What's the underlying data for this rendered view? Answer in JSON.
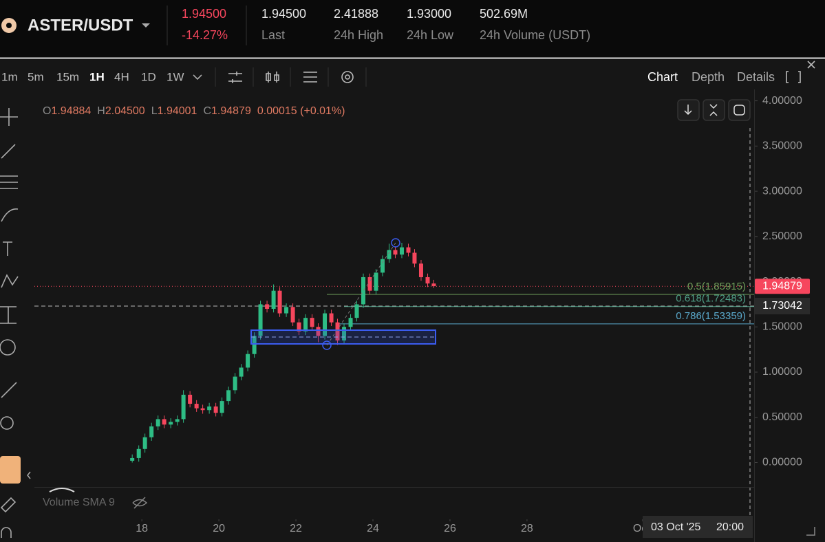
{
  "header": {
    "pair": "ASTER/USDT",
    "price": "1.94500",
    "change": "-14.27%",
    "stats": [
      {
        "value": "1.94500",
        "label": "Last"
      },
      {
        "value": "2.41888",
        "label": "24h High"
      },
      {
        "value": "1.93000",
        "label": "24h Low"
      },
      {
        "value": "502.69M",
        "label": "24h Volume (USDT)"
      }
    ]
  },
  "toolbar": {
    "intervals": [
      "1m",
      "5m",
      "15m",
      "1H",
      "4H",
      "1D",
      "1W"
    ],
    "active_interval": "1H",
    "tabs": [
      "Chart",
      "Depth",
      "Details"
    ],
    "active_tab": "Chart"
  },
  "legend": {
    "ohlc": [
      {
        "key": "O",
        "value": "1.94884"
      },
      {
        "key": "H",
        "value": "2.04500"
      },
      {
        "key": "L",
        "value": "1.94001"
      },
      {
        "key": "C",
        "value": "1.94879"
      }
    ],
    "change": "0.00015 (+0.01%)",
    "volume": "Volume SMA 9"
  },
  "crosshair": {
    "date": "03 Oct '25",
    "time": "20:00"
  },
  "chart_data": {
    "type": "candlestick",
    "up_color": "#2ebd85",
    "down_color": "#f6465d",
    "x": [
      17.75,
      17.92,
      18.08,
      18.25,
      18.42,
      18.58,
      18.75,
      18.92,
      19.08,
      19.25,
      19.42,
      19.58,
      19.75,
      19.92,
      20.08,
      20.25,
      20.42,
      20.58,
      20.75,
      20.92,
      21.08,
      21.25,
      21.42,
      21.58,
      21.75,
      21.92,
      22.08,
      22.25,
      22.42,
      22.58,
      22.75,
      22.92,
      23.08,
      23.25,
      23.42,
      23.58,
      23.75,
      23.92,
      24.08,
      24.25,
      24.42,
      24.58,
      24.75,
      24.92,
      25.08,
      25.25,
      25.42,
      25.58
    ],
    "candles": [
      [
        0.02,
        0.09,
        0.0,
        0.05
      ],
      [
        0.05,
        0.19,
        0.01,
        0.15
      ],
      [
        0.15,
        0.32,
        0.11,
        0.28
      ],
      [
        0.28,
        0.44,
        0.24,
        0.4
      ],
      [
        0.4,
        0.52,
        0.36,
        0.48
      ],
      [
        0.48,
        0.52,
        0.38,
        0.42
      ],
      [
        0.42,
        0.49,
        0.38,
        0.45
      ],
      [
        0.45,
        0.52,
        0.41,
        0.48
      ],
      [
        0.48,
        0.8,
        0.44,
        0.75
      ],
      [
        0.75,
        0.79,
        0.61,
        0.65
      ],
      [
        0.65,
        0.69,
        0.56,
        0.6
      ],
      [
        0.6,
        0.64,
        0.54,
        0.58
      ],
      [
        0.58,
        0.66,
        0.54,
        0.62
      ],
      [
        0.62,
        0.66,
        0.51,
        0.55
      ],
      [
        0.55,
        0.72,
        0.51,
        0.68
      ],
      [
        0.68,
        0.84,
        0.64,
        0.8
      ],
      [
        0.8,
        0.99,
        0.76,
        0.95
      ],
      [
        0.95,
        1.09,
        0.91,
        1.05
      ],
      [
        1.05,
        1.24,
        1.01,
        1.2
      ],
      [
        1.2,
        1.44,
        1.16,
        1.4
      ],
      [
        1.4,
        1.79,
        1.36,
        1.75
      ],
      [
        1.75,
        1.79,
        1.66,
        1.7
      ],
      [
        1.7,
        1.97,
        1.66,
        1.9
      ],
      [
        1.9,
        1.94,
        1.61,
        1.65
      ],
      [
        1.65,
        1.76,
        1.61,
        1.72
      ],
      [
        1.72,
        1.76,
        1.51,
        1.55
      ],
      [
        1.55,
        1.59,
        1.41,
        1.45
      ],
      [
        1.45,
        1.64,
        1.41,
        1.6
      ],
      [
        1.6,
        1.64,
        1.46,
        1.5
      ],
      [
        1.5,
        1.54,
        1.33,
        1.4
      ],
      [
        1.4,
        1.69,
        1.36,
        1.65
      ],
      [
        1.65,
        1.69,
        1.51,
        1.55
      ],
      [
        1.55,
        1.59,
        1.3,
        1.35
      ],
      [
        1.35,
        1.54,
        1.31,
        1.5
      ],
      [
        1.5,
        1.64,
        1.46,
        1.6
      ],
      [
        1.6,
        1.79,
        1.56,
        1.75
      ],
      [
        1.75,
        2.09,
        1.71,
        2.05
      ],
      [
        2.05,
        2.09,
        1.86,
        1.9
      ],
      [
        1.9,
        2.14,
        1.86,
        2.1
      ],
      [
        2.1,
        2.29,
        2.06,
        2.25
      ],
      [
        2.25,
        2.42,
        2.21,
        2.35
      ],
      [
        2.35,
        2.39,
        2.26,
        2.3
      ],
      [
        2.3,
        2.43,
        2.26,
        2.38
      ],
      [
        2.38,
        2.42,
        2.28,
        2.32
      ],
      [
        2.32,
        2.36,
        2.16,
        2.2
      ],
      [
        2.2,
        2.24,
        2.01,
        2.05
      ],
      [
        2.05,
        2.09,
        1.94,
        1.98
      ],
      [
        1.98,
        2.02,
        1.93,
        1.95
      ]
    ],
    "xlim": [
      15.21,
      33.79
    ],
    "xticks": [
      18,
      20,
      22,
      24,
      26,
      28,
      {
        "value": 31,
        "label": "Oc"
      }
    ],
    "ylim": [
      -0.27,
      4.05
    ],
    "yticks": [
      {
        "value": 0,
        "label": "0.00000"
      },
      {
        "value": 0.5,
        "label": "0.50000"
      },
      {
        "value": 1,
        "label": "1.00000"
      },
      {
        "value": 1.5,
        "label": "1.50000"
      },
      {
        "value": 2,
        "label": "2.00000"
      },
      {
        "value": 2.5,
        "label": "2.50000"
      },
      {
        "value": 3,
        "label": "3.00000"
      },
      {
        "value": 3.5,
        "label": "3.50000"
      },
      {
        "value": 4,
        "label": "4.00000"
      }
    ],
    "fib_levels": [
      {
        "value": 1.85915,
        "label": "0.5(1.85915)",
        "color": "#6f9e5a"
      },
      {
        "value": 1.72483,
        "label": "0.618(1.72483)",
        "color": "#4f9e86"
      },
      {
        "value": 1.53359,
        "label": "0.786(1.53359)",
        "color": "#5aa9cc"
      }
    ],
    "last_price": {
      "value": 1.94879,
      "label": "1.94879",
      "color": "#f6465d"
    },
    "crosshair_price": {
      "value": 1.73042,
      "label": "1.73042"
    }
  }
}
